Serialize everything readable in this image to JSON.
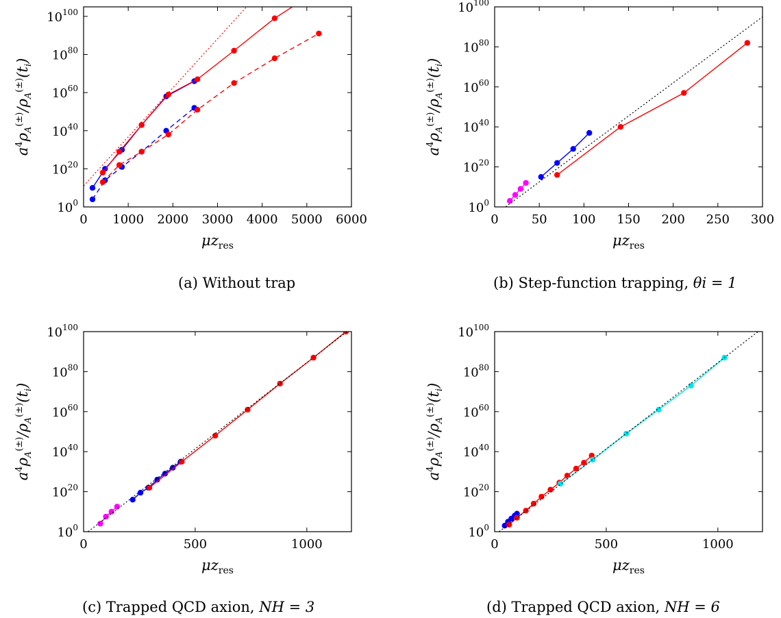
{
  "panel_captions": [
    {
      "prefix": "(a) Without trap",
      "math": ""
    },
    {
      "prefix": "(b) Step-function trapping, ",
      "math": "θi = 1"
    },
    {
      "prefix": "(c) Trapped QCD axion, ",
      "math": "NH = 3"
    },
    {
      "prefix": "(d) Trapped QCD axion, ",
      "math": "NH = 6"
    }
  ],
  "chart_data": [
    {
      "type": "line",
      "caption": "(a) Without trap",
      "xlabel": "μz_res",
      "ylabel": "a^4 ρ_A^(±)/ρ_A^(±)(t_i)",
      "xlim": [
        0,
        6000
      ],
      "ylim_log10": [
        0,
        105
      ],
      "xticks": [
        "0",
        "1000",
        "2000",
        "3000",
        "4000",
        "5000",
        "6000"
      ],
      "yticks": [
        "10^0",
        "10^20",
        "10^40",
        "10^60",
        "10^80",
        "10^100"
      ],
      "grid": false,
      "series": [
        {
          "color": "#0000ff",
          "style": "solid",
          "x": [
            200,
            480,
            860,
            1300,
            1850,
            2480
          ],
          "log10_y": [
            10,
            20,
            30,
            43,
            58,
            66
          ]
        },
        {
          "color": "#0000ff",
          "style": "dashed",
          "x": [
            200,
            480,
            860,
            1300,
            1850,
            2480
          ],
          "log10_y": [
            4,
            14,
            21,
            29,
            40,
            52
          ]
        },
        {
          "color": "#ff0000",
          "style": "solid",
          "x": [
            430,
            800,
            1300,
            1900,
            2550,
            3370,
            4280,
            5270
          ],
          "log10_y": [
            18,
            29,
            43,
            59,
            67,
            82,
            99,
            114
          ]
        },
        {
          "color": "#ff0000",
          "style": "dashed",
          "x": [
            430,
            800,
            1300,
            1900,
            2550,
            3370,
            4280,
            5270
          ],
          "log10_y": [
            13,
            22,
            29,
            38,
            51,
            65,
            78,
            91
          ]
        },
        {
          "color": "#ff0000",
          "style": "dotted",
          "x": [
            0,
            4000
          ],
          "log10_y": [
            11,
            114
          ],
          "markers": false
        }
      ]
    },
    {
      "type": "line",
      "caption": "(b) Step-function trapping, θi = 1",
      "xlabel": "μz_res",
      "ylabel": "a^4 ρ_A^(±)/ρ_A^(±)(t_i)",
      "xlim": [
        0,
        300
      ],
      "ylim_log10": [
        0,
        100
      ],
      "xticks": [
        "0",
        "50",
        "100",
        "150",
        "200",
        "250",
        "300"
      ],
      "yticks": [
        "10^0",
        "10^20",
        "10^40",
        "10^60",
        "10^80",
        "10^100"
      ],
      "grid": false,
      "series": [
        {
          "color": "#ff00ff",
          "style": "solid",
          "x": [
            17,
            23,
            29,
            35
          ],
          "log10_y": [
            3,
            6,
            9,
            12
          ]
        },
        {
          "color": "#0000ff",
          "style": "solid",
          "x": [
            52,
            70,
            88,
            106
          ],
          "log10_y": [
            15,
            22,
            29,
            37
          ]
        },
        {
          "color": "#ff0000",
          "style": "solid",
          "x": [
            70,
            141,
            212,
            283
          ],
          "log10_y": [
            16,
            40,
            57,
            82
          ]
        },
        {
          "color": "#000000",
          "style": "dotted",
          "x": [
            0,
            300
          ],
          "log10_y": [
            -4,
            95
          ],
          "markers": false
        }
      ]
    },
    {
      "type": "line",
      "caption": "(c) Trapped QCD axion, NH = 3",
      "xlabel": "μz_res",
      "ylabel": "a^4 ρ_A^(±)/ρ_A^(±)(t_i)",
      "xlim": [
        0,
        1200
      ],
      "ylim_log10": [
        0,
        100
      ],
      "xticks": [
        "0",
        "500",
        "1000"
      ],
      "yticks": [
        "10^0",
        "10^20",
        "10^40",
        "10^60",
        "10^80",
        "10^100"
      ],
      "grid": false,
      "series": [
        {
          "color": "#ff00ff",
          "style": "solid",
          "x": [
            75,
            100,
            125,
            150
          ],
          "log10_y": [
            4,
            7.5,
            10,
            12.5
          ]
        },
        {
          "color": "#0000ff",
          "style": "solid",
          "x": [
            220,
            255,
            290,
            330,
            365,
            400,
            435
          ],
          "log10_y": [
            16,
            19.5,
            22,
            26,
            29,
            32,
            35
          ]
        },
        {
          "color": "#ff0000",
          "style": "solid",
          "x": [
            295,
            440,
            590,
            735,
            880,
            1030,
            1175
          ],
          "log10_y": [
            22,
            35,
            48,
            61,
            74,
            87,
            100
          ]
        },
        {
          "color": "#000000",
          "style": "dotted",
          "x": [
            20,
            1180
          ],
          "log10_y": [
            0,
            100
          ],
          "markers": false
        }
      ]
    },
    {
      "type": "line",
      "caption": "(d) Trapped QCD axion, NH = 6",
      "xlabel": "μz_res",
      "ylabel": "a^4 ρ_A^(±)/ρ_A^(±)(t_i)",
      "xlim": [
        0,
        1200
      ],
      "ylim_log10": [
        0,
        100
      ],
      "xticks": [
        "0",
        "500",
        "1000"
      ],
      "yticks": [
        "10^0",
        "10^20",
        "10^40",
        "10^60",
        "10^80",
        "10^100"
      ],
      "grid": false,
      "series": [
        {
          "color": "#0000ff",
          "style": "solid",
          "x": [
            45,
            60,
            75,
            90,
            100
          ],
          "log10_y": [
            3,
            5,
            6.5,
            8,
            9
          ]
        },
        {
          "color": "#ff0000",
          "style": "solid",
          "x": [
            65,
            100,
            140,
            175,
            210,
            250,
            290,
            325,
            365,
            400,
            435
          ],
          "log10_y": [
            3.5,
            7,
            10.5,
            14,
            17.5,
            21,
            24.5,
            28,
            31.5,
            34.5,
            38
          ]
        },
        {
          "color": "#00e5ee",
          "style": "solid",
          "x": [
            295,
            440,
            590,
            735,
            880,
            1030
          ],
          "log10_y": [
            24,
            36,
            49,
            61,
            73,
            87
          ]
        },
        {
          "color": "#000000",
          "style": "dotted",
          "x": [
            20,
            1180
          ],
          "log10_y": [
            0,
            100
          ],
          "markers": false
        }
      ]
    }
  ]
}
